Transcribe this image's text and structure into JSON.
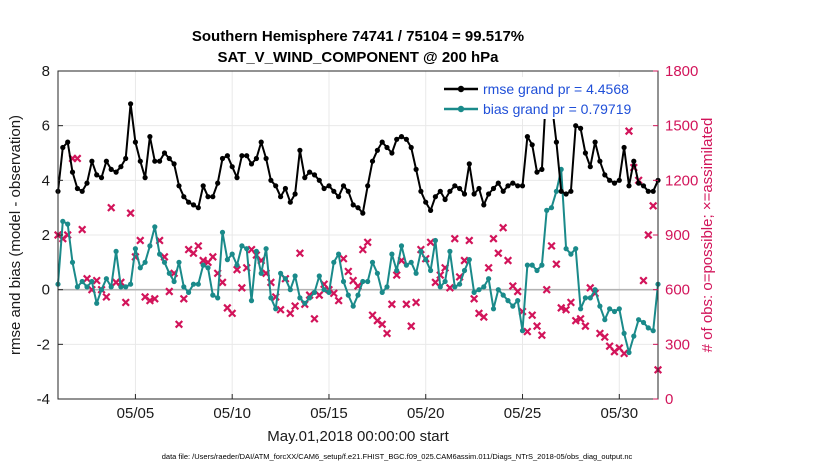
{
  "chart_data": {
    "type": "line",
    "title": "Southern Hemisphere 74741 / 75104 = 99.517%",
    "subtitle": "SAT_V_WIND_COMPONENT @ 200 hPa",
    "xlabel": "May.01,2018 00:00:00 start",
    "ylabel": "rmse and bias (model - observation)",
    "ylabel_right": "# of obs: o=possible; ×=assimilated",
    "footer": "data file: /Users/raeder/DAI/ATM_forcXX/CAM6_setup/f.e21.FHIST_BGC.f09_025.CAM6assim.011/Diags_NTrS_2018-05/obs_diag_output.nc",
    "x_range": [
      1.0,
      32.0
    ],
    "ylim": [
      -4,
      8
    ],
    "ylim_right": [
      0,
      1800
    ],
    "y_ticks": [
      "-4",
      "-2",
      "0",
      "2",
      "4",
      "6",
      "8"
    ],
    "y_ticks_right": [
      "0",
      "300",
      "600",
      "900",
      "1200",
      "1500",
      "1800"
    ],
    "x_tick_positions": [
      5,
      10,
      15,
      20,
      25,
      30
    ],
    "x_tick_labels": [
      "05/05",
      "05/10",
      "05/15",
      "05/20",
      "05/25",
      "05/30"
    ],
    "grid": true,
    "legend_position": "top-right",
    "colors": {
      "rmse": "#000000",
      "bias": "#1a8a8a",
      "obs": "#d2145a",
      "zero_line": "#b3b3b3",
      "legend_text": "#1f4fd8"
    },
    "series": [
      {
        "name": "rmse grand pr = 4.4568",
        "axis": "left",
        "values": [
          3.6,
          5.2,
          5.4,
          4.3,
          3.7,
          3.6,
          3.9,
          4.7,
          4.2,
          4.1,
          4.7,
          4.4,
          4.3,
          4.5,
          4.8,
          6.8,
          5.4,
          4.7,
          4.1,
          5.6,
          4.7,
          4.7,
          5.0,
          4.8,
          4.6,
          3.8,
          3.4,
          3.2,
          3.1,
          3.0,
          3.8,
          3.4,
          3.4,
          3.9,
          4.8,
          4.9,
          4.5,
          4.1,
          4.9,
          4.9,
          4.6,
          4.8,
          5.4,
          4.8,
          4.0,
          3.8,
          3.4,
          3.7,
          3.2,
          3.5,
          5.1,
          4.1,
          4.3,
          4.2,
          4.0,
          3.7,
          3.8,
          3.6,
          3.4,
          3.8,
          3.6,
          3.1,
          3.0,
          2.8,
          3.8,
          4.7,
          5.1,
          5.4,
          5.2,
          5.0,
          5.5,
          5.6,
          5.5,
          5.2,
          4.4,
          3.6,
          3.2,
          2.9,
          3.4,
          3.6,
          3.3,
          3.6,
          3.8,
          3.7,
          3.5,
          4.6,
          3.5,
          3.7,
          3.1,
          3.5,
          3.7,
          3.9,
          3.6,
          3.8,
          3.9,
          3.8,
          3.8,
          5.6,
          5.3,
          4.3,
          4.4,
          7.6,
          6.9,
          5.4,
          3.6,
          3.5,
          3.6,
          6.0,
          5.9,
          5.0,
          4.5,
          5.4,
          4.7,
          4.2,
          4.0,
          3.9,
          4.0,
          5.2,
          3.8,
          4.7,
          3.9,
          3.8,
          3.6,
          3.6,
          4.0
        ]
      },
      {
        "name": "bias grand pr = 0.79719",
        "axis": "left",
        "values": [
          0.2,
          2.5,
          2.4,
          1.0,
          0.1,
          0.3,
          0.1,
          0.3,
          -0.5,
          0.0,
          0.4,
          0.1,
          1.4,
          0.1,
          0.1,
          0.2,
          1.5,
          0.8,
          1.0,
          1.6,
          2.3,
          1.3,
          1.0,
          0.6,
          0.3,
          1.0,
          0.1,
          -0.1,
          0.2,
          0.2,
          0.9,
          0.8,
          -0.2,
          -0.3,
          2.1,
          1.1,
          1.3,
          0.9,
          1.6,
          1.5,
          -0.4,
          1.4,
          0.6,
          1.5,
          -0.3,
          -0.7,
          0.6,
          0.4,
          0.0,
          0.5,
          -0.3,
          -0.5,
          -0.3,
          -0.1,
          0.5,
          0.0,
          -0.1,
          1.0,
          1.3,
          0.3,
          -0.2,
          -0.6,
          -0.2,
          0.3,
          0.3,
          1.0,
          0.6,
          -0.1,
          0.1,
          1.3,
          0.7,
          1.6,
          0.9,
          1.0,
          0.6,
          1.4,
          1.1,
          0.7,
          1.8,
          0.1,
          0.3,
          1.4,
          0.1,
          0.2,
          0.7,
          1.1,
          -0.1,
          0.0,
          0.1,
          0.4,
          -0.7,
          0.0,
          -0.2,
          -0.4,
          -0.6,
          -0.4,
          -1.5,
          0.9,
          0.9,
          0.7,
          0.9,
          2.9,
          3.0,
          3.6,
          4.4,
          1.5,
          1.3,
          1.5,
          -0.7,
          -0.3,
          -0.3,
          0.0,
          -0.6,
          -1.1,
          -0.7,
          -0.8,
          -0.7,
          -1.6,
          -2.3,
          -1.7,
          -1.1,
          -1.2,
          -1.4,
          -1.5,
          0.2
        ]
      },
      {
        "name": "obs_assimilated",
        "axis": "right",
        "values": [
          900,
          880,
          900,
          1320,
          1320,
          930,
          660,
          600,
          650,
          600,
          560,
          1050,
          640,
          640,
          530,
          1020,
          780,
          870,
          560,
          540,
          550,
          870,
          780,
          590,
          690,
          410,
          550,
          820,
          800,
          840,
          760,
          750,
          780,
          690,
          640,
          500,
          470,
          710,
          610,
          720,
          820,
          790,
          760,
          690,
          640,
          560,
          490,
          660,
          470,
          510,
          800,
          520,
          570,
          440,
          570,
          630,
          600,
          580,
          540,
          770,
          700,
          650,
          620,
          820,
          860,
          460,
          430,
          410,
          360,
          520,
          680,
          760,
          520,
          400,
          530,
          820,
          770,
          860,
          640,
          680,
          720,
          610,
          880,
          670,
          760,
          870,
          550,
          470,
          450,
          720,
          880,
          800,
          940,
          760,
          620,
          590,
          480,
          370,
          460,
          400,
          350,
          600,
          840,
          740,
          500,
          490,
          530,
          430,
          440,
          400,
          610,
          580,
          360,
          340,
          290,
          260,
          280,
          250,
          1470,
          1270,
          1200,
          650,
          900,
          1060,
          160
        ]
      }
    ]
  }
}
